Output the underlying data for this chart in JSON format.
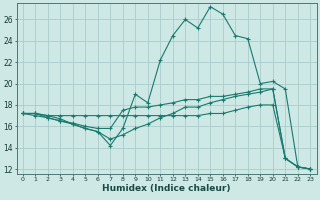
{
  "xlabel": "Humidex (Indice chaleur)",
  "background_color": "#cde8e5",
  "grid_color": "#aaccca",
  "line_color": "#1a7a6e",
  "xlim": [
    -0.5,
    23.5
  ],
  "ylim": [
    11.5,
    27.5
  ],
  "xticks": [
    0,
    1,
    2,
    3,
    4,
    5,
    6,
    7,
    8,
    9,
    10,
    11,
    12,
    13,
    14,
    15,
    16,
    17,
    18,
    19,
    20,
    21,
    22,
    23
  ],
  "yticks": [
    12,
    14,
    16,
    18,
    20,
    22,
    24,
    26
  ],
  "line1_x": [
    0,
    1,
    2,
    3,
    4,
    5,
    6,
    7,
    8,
    9,
    10,
    11,
    12,
    13,
    14,
    15,
    16,
    17,
    18,
    19,
    20,
    21,
    22,
    23
  ],
  "line1_y": [
    17.2,
    17.2,
    17.0,
    16.7,
    16.2,
    15.8,
    15.5,
    14.2,
    15.8,
    19.0,
    18.2,
    22.2,
    24.5,
    26.0,
    25.2,
    27.2,
    26.5,
    24.5,
    24.2,
    20.0,
    20.2,
    19.5,
    12.2,
    12.0
  ],
  "line2_x": [
    0,
    1,
    2,
    3,
    4,
    5,
    6,
    7,
    8,
    9,
    10,
    11,
    12,
    13,
    14,
    15,
    16,
    17,
    18,
    19,
    20,
    21,
    22,
    23
  ],
  "line2_y": [
    17.2,
    17.2,
    16.8,
    16.5,
    16.3,
    16.0,
    15.8,
    15.8,
    17.5,
    17.8,
    17.8,
    18.0,
    18.2,
    18.5,
    18.5,
    18.8,
    18.8,
    19.0,
    19.2,
    19.5,
    19.5,
    13.0,
    12.2,
    12.0
  ],
  "line3_x": [
    0,
    1,
    2,
    3,
    4,
    5,
    6,
    7,
    8,
    9,
    10,
    11,
    12,
    13,
    14,
    15,
    16,
    17,
    18,
    19,
    20,
    21,
    22,
    23
  ],
  "line3_y": [
    17.2,
    17.0,
    16.8,
    16.5,
    16.2,
    15.8,
    15.5,
    14.8,
    15.2,
    15.8,
    16.2,
    16.8,
    17.2,
    17.8,
    17.8,
    18.2,
    18.5,
    18.8,
    19.0,
    19.2,
    19.5,
    13.0,
    12.2,
    12.0
  ],
  "line4_x": [
    0,
    1,
    2,
    3,
    4,
    5,
    6,
    7,
    8,
    9,
    10,
    11,
    12,
    13,
    14,
    15,
    16,
    17,
    18,
    19,
    20,
    21,
    22,
    23
  ],
  "line4_y": [
    17.2,
    17.2,
    17.0,
    17.0,
    17.0,
    17.0,
    17.0,
    17.0,
    17.0,
    17.0,
    17.0,
    17.0,
    17.0,
    17.0,
    17.0,
    17.2,
    17.2,
    17.5,
    17.8,
    18.0,
    18.0,
    13.0,
    12.2,
    12.0
  ]
}
